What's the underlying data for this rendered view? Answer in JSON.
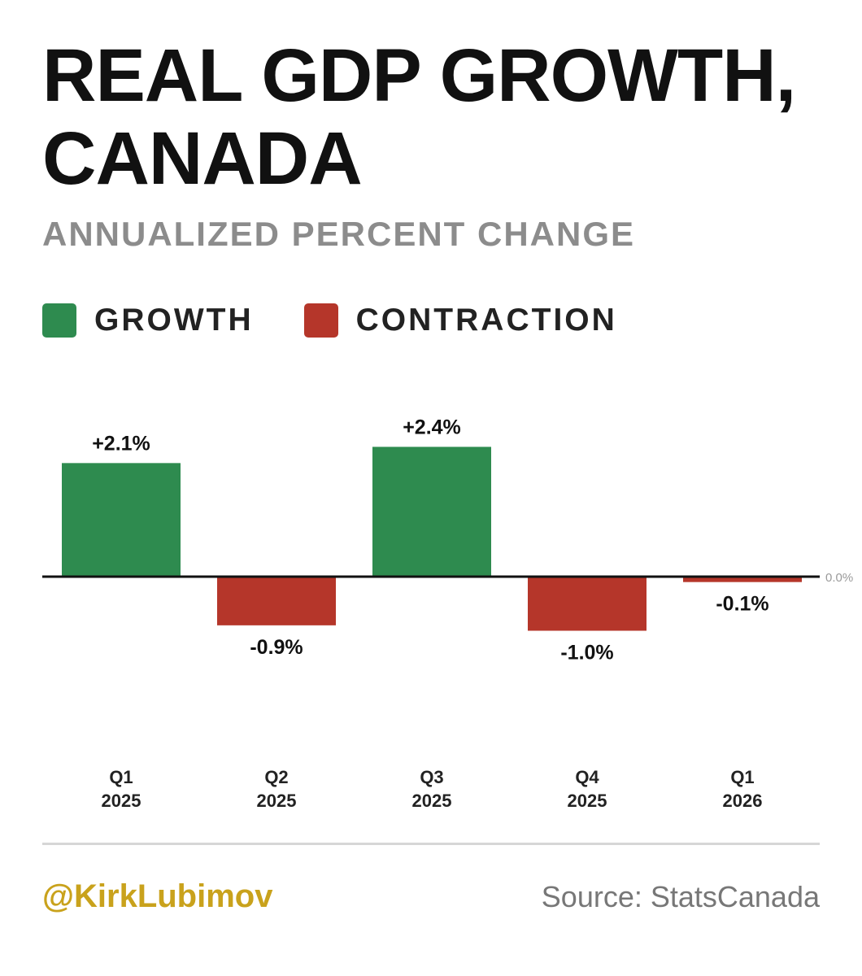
{
  "title_line1": "REAL GDP GROWTH,",
  "title_line2": "CANADA",
  "subtitle": "ANNUALIZED PERCENT CHANGE",
  "legend": [
    {
      "label": "GROWTH",
      "color": "#2e8b4f"
    },
    {
      "label": "CONTRACTION",
      "color": "#b5362a"
    }
  ],
  "chart_data": {
    "type": "bar",
    "categories": [
      [
        "Q1",
        "2025"
      ],
      [
        "Q2",
        "2025"
      ],
      [
        "Q3",
        "2025"
      ],
      [
        "Q4",
        "2025"
      ],
      [
        "Q1",
        "2026"
      ]
    ],
    "values": [
      2.1,
      -0.9,
      2.4,
      -1.0,
      -0.1
    ],
    "data_labels": [
      "+2.1%",
      "-0.9%",
      "+2.4%",
      "-1.0%",
      "-0.1%"
    ],
    "baseline_label": "0.0%",
    "ylim": [
      -2.4,
      2.8
    ],
    "grid": false,
    "legend_position": "top-left",
    "colors": {
      "positive": "#2e8b4f",
      "negative": "#b5362a"
    }
  },
  "footer": {
    "handle": "@KirkLubimov",
    "source": "Source: StatsCanada"
  }
}
